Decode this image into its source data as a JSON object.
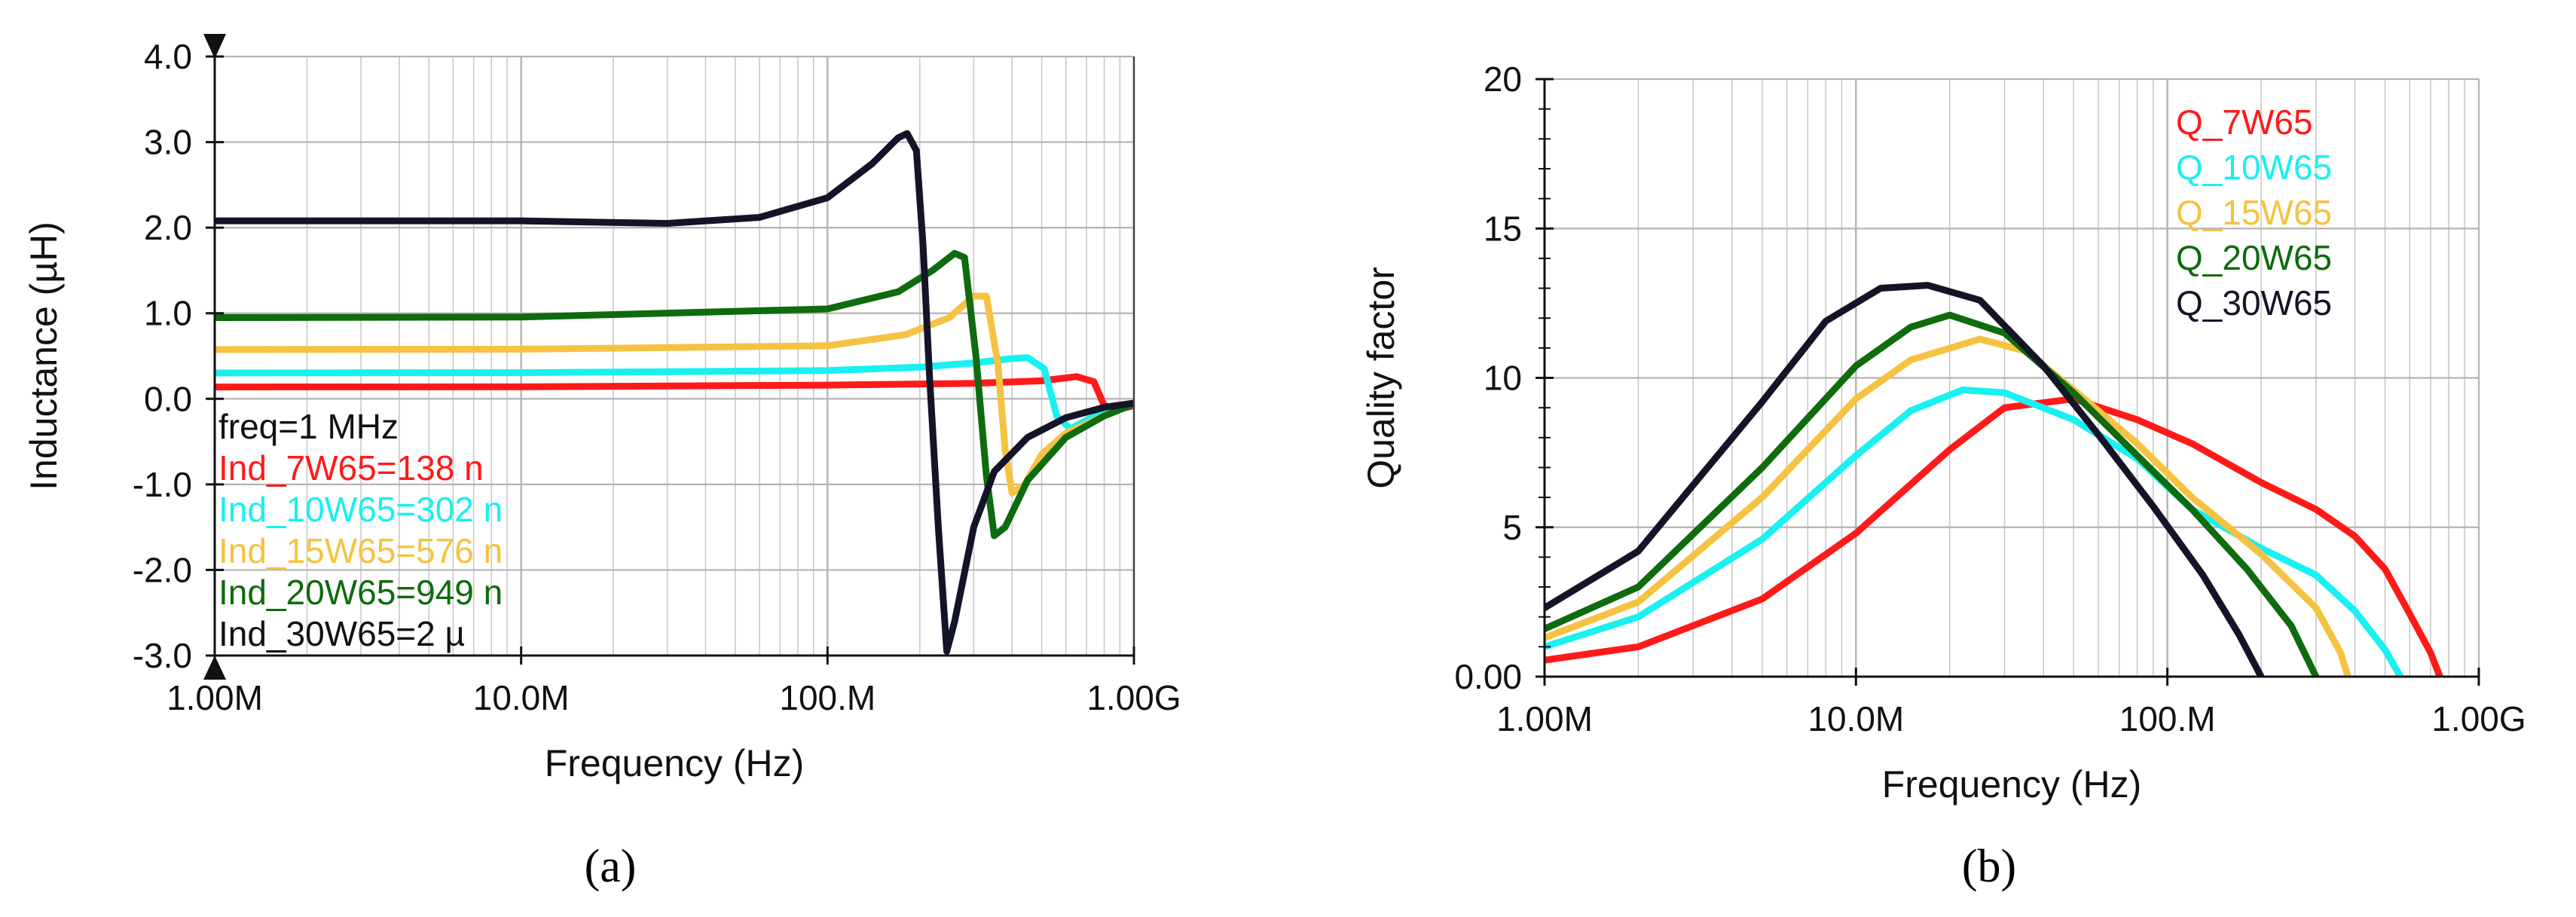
{
  "captions": {
    "a": "(a)",
    "b": "(b)"
  },
  "chart_data": [
    {
      "type": "line",
      "panel": "a",
      "xscale": "log",
      "xlabel": "Frequency (Hz)",
      "ylabel": "Inductance (µH)",
      "xlim": [
        1000000,
        1000000000
      ],
      "ylim": [
        -3.0,
        4.0
      ],
      "xticks": [
        {
          "value": 1000000,
          "label": "1.00M"
        },
        {
          "value": 10000000,
          "label": "10.0M"
        },
        {
          "value": 100000000,
          "label": "100.M"
        },
        {
          "value": 1000000000,
          "label": "1.00G"
        }
      ],
      "yticks": [
        {
          "value": 4.0,
          "label": "4.0"
        },
        {
          "value": 3.0,
          "label": "3.0"
        },
        {
          "value": 2.0,
          "label": "2.0"
        },
        {
          "value": 1.0,
          "label": "1.0"
        },
        {
          "value": 0.0,
          "label": "0.0"
        },
        {
          "value": -1.0,
          "label": "-1.0"
        },
        {
          "value": -2.0,
          "label": "-2.0"
        },
        {
          "value": -3.0,
          "label": "-3.0"
        }
      ],
      "grid": true,
      "annotations": [
        {
          "text": "freq=1 MHz",
          "color": "#111111"
        },
        {
          "text": "Ind_7W65=138 n",
          "color": "#ff1a1a"
        },
        {
          "text": "Ind_10W65=302 n",
          "color": "#19f0f0"
        },
        {
          "text": "Ind_15W65=576 n",
          "color": "#f5c242"
        },
        {
          "text": "Ind_20W65=949 n",
          "color": "#0e6b0e"
        },
        {
          "text": "Ind_30W65=2 µ",
          "color": "#111111"
        }
      ],
      "series": [
        {
          "name": "Ind_7W65",
          "color": "#ff1a1a",
          "x": [
            1000000.0,
            10000000.0,
            100000000.0,
            300000000.0,
            500000000.0,
            650000000.0,
            740000000.0,
            800000000.0,
            900000000.0,
            1000000000.0
          ],
          "y": [
            0.138,
            0.14,
            0.16,
            0.18,
            0.21,
            0.26,
            0.2,
            -0.08,
            -0.12,
            -0.08
          ]
        },
        {
          "name": "Ind_10W65",
          "color": "#19f0f0",
          "x": [
            1000000.0,
            10000000.0,
            100000000.0,
            200000000.0,
            300000000.0,
            400000000.0,
            450000000.0,
            510000000.0,
            560000000.0,
            620000000.0,
            700000000.0,
            800000000.0,
            1000000000.0
          ],
          "y": [
            0.302,
            0.305,
            0.33,
            0.37,
            0.42,
            0.47,
            0.48,
            0.35,
            -0.2,
            -0.35,
            -0.25,
            -0.15,
            -0.06
          ]
        },
        {
          "name": "Ind_15W65",
          "color": "#f5c242",
          "x": [
            1000000.0,
            10000000.0,
            100000000.0,
            180000000.0,
            250000000.0,
            300000000.0,
            330000000.0,
            360000000.0,
            380000000.0,
            400000000.0,
            440000000.0,
            500000000.0,
            600000000.0,
            800000000.0,
            1000000000.0
          ],
          "y": [
            0.576,
            0.58,
            0.62,
            0.75,
            0.95,
            1.2,
            1.2,
            0.4,
            -0.6,
            -1.1,
            -1.0,
            -0.65,
            -0.4,
            -0.2,
            -0.06
          ]
        },
        {
          "name": "Ind_20W65",
          "color": "#0e6b0e",
          "x": [
            1000000.0,
            10000000.0,
            100000000.0,
            170000000.0,
            220000000.0,
            260000000.0,
            280000000.0,
            305000000.0,
            330000000.0,
            350000000.0,
            380000000.0,
            450000000.0,
            600000000.0,
            800000000.0,
            1000000000.0
          ],
          "y": [
            0.949,
            0.955,
            1.05,
            1.25,
            1.5,
            1.7,
            1.65,
            0.5,
            -0.9,
            -1.6,
            -1.5,
            -0.95,
            -0.45,
            -0.2,
            -0.06
          ]
        },
        {
          "name": "Ind_30W65",
          "color": "#141428",
          "x": [
            1000000.0,
            10000000.0,
            30000000.0,
            60000000.0,
            100000000.0,
            140000000.0,
            170000000.0,
            182000000.0,
            195000000.0,
            205000000.0,
            215000000.0,
            230000000.0,
            245000000.0,
            260000000.0,
            300000000.0,
            350000000.0,
            450000000.0,
            600000000.0,
            800000000.0,
            1000000000.0
          ],
          "y": [
            2.08,
            2.08,
            2.05,
            2.12,
            2.35,
            2.75,
            3.05,
            3.1,
            2.9,
            1.8,
            0.3,
            -1.5,
            -2.95,
            -2.6,
            -1.5,
            -0.85,
            -0.45,
            -0.22,
            -0.1,
            -0.05
          ]
        }
      ]
    },
    {
      "type": "line",
      "panel": "b",
      "xscale": "log",
      "xlabel": "Frequency (Hz)",
      "ylabel": "Quality factor",
      "xlim": [
        1000000,
        1000000000
      ],
      "ylim": [
        0,
        20
      ],
      "xticks": [
        {
          "value": 1000000,
          "label": "1.00M"
        },
        {
          "value": 10000000,
          "label": "10.0M"
        },
        {
          "value": 100000000,
          "label": "100.M"
        },
        {
          "value": 1000000000,
          "label": "1.00G"
        }
      ],
      "yticks": [
        {
          "value": 20,
          "label": "20"
        },
        {
          "value": 15,
          "label": "15"
        },
        {
          "value": 10,
          "label": "10"
        },
        {
          "value": 5,
          "label": "5"
        },
        {
          "value": 0,
          "label": "0.00"
        }
      ],
      "grid": true,
      "legend_position": "top-right",
      "series": [
        {
          "name": "Q_7W65",
          "color": "#ff1a1a",
          "x": [
            1000000.0,
            2000000.0,
            5000000.0,
            10000000.0,
            20000000.0,
            30000000.0,
            50000000.0,
            80000000.0,
            120000000.0,
            200000000.0,
            300000000.0,
            400000000.0,
            500000000.0,
            600000000.0,
            700000000.0,
            750000000.0
          ],
          "y": [
            0.55,
            1.0,
            2.6,
            4.8,
            7.6,
            9.0,
            9.3,
            8.6,
            7.8,
            6.5,
            5.6,
            4.7,
            3.6,
            2.1,
            0.8,
            0
          ]
        },
        {
          "name": "Q_10W65",
          "color": "#19f0f0",
          "x": [
            1000000.0,
            2000000.0,
            5000000.0,
            10000000.0,
            15000000.0,
            22000000.0,
            30000000.0,
            50000000.0,
            80000000.0,
            120000000.0,
            200000000.0,
            300000000.0,
            400000000.0,
            500000000.0,
            560000000.0
          ],
          "y": [
            1.0,
            2.0,
            4.6,
            7.4,
            8.9,
            9.6,
            9.5,
            8.6,
            7.3,
            5.6,
            4.3,
            3.4,
            2.2,
            0.9,
            0
          ]
        },
        {
          "name": "Q_15W65",
          "color": "#f5c242",
          "x": [
            1000000.0,
            2000000.0,
            5000000.0,
            10000000.0,
            15000000.0,
            25000000.0,
            35000000.0,
            50000000.0,
            80000000.0,
            120000000.0,
            200000000.0,
            300000000.0,
            360000000.0,
            380000000.0
          ],
          "y": [
            1.3,
            2.5,
            6.0,
            9.3,
            10.6,
            11.3,
            10.9,
            9.6,
            7.8,
            6.0,
            4.1,
            2.3,
            0.8,
            0
          ]
        },
        {
          "name": "Q_20W65",
          "color": "#0e6b0e",
          "x": [
            1000000.0,
            2000000.0,
            5000000.0,
            10000000.0,
            15000000.0,
            20000000.0,
            30000000.0,
            50000000.0,
            80000000.0,
            120000000.0,
            180000000.0,
            250000000.0,
            300000000.0
          ],
          "y": [
            1.6,
            3.0,
            7.0,
            10.4,
            11.7,
            12.1,
            11.5,
            9.5,
            7.4,
            5.6,
            3.6,
            1.7,
            0
          ]
        },
        {
          "name": "Q_30W65",
          "color": "#141428",
          "x": [
            1000000.0,
            2000000.0,
            5000000.0,
            8000000.0,
            12000000.0,
            17000000.0,
            25000000.0,
            40000000.0,
            60000000.0,
            90000000.0,
            130000000.0,
            170000000.0,
            200000000.0
          ],
          "y": [
            2.3,
            4.2,
            9.2,
            11.9,
            13.0,
            13.1,
            12.6,
            10.4,
            8.1,
            5.7,
            3.4,
            1.4,
            0
          ]
        }
      ]
    }
  ]
}
